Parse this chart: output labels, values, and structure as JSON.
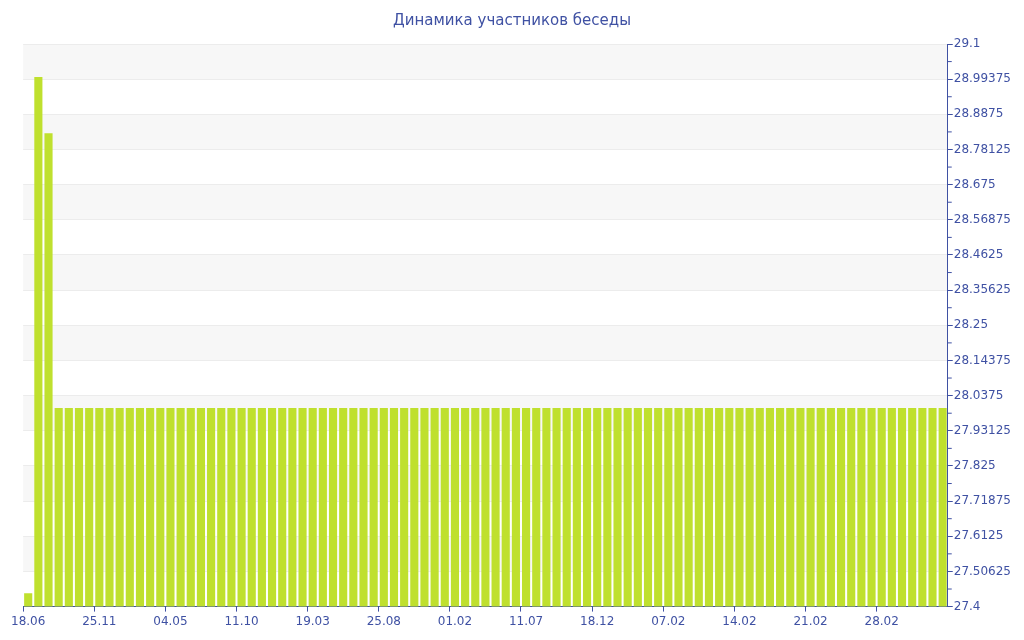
{
  "chart_data": {
    "type": "bar",
    "title": "Динамика участников беседы",
    "categories": [
      "18.06",
      null,
      null,
      null,
      null,
      null,
      null,
      "25.11",
      null,
      null,
      null,
      null,
      null,
      null,
      "04.05",
      null,
      null,
      null,
      null,
      null,
      null,
      "11.10",
      null,
      null,
      null,
      null,
      null,
      null,
      "19.03",
      null,
      null,
      null,
      null,
      null,
      null,
      "25.08",
      null,
      null,
      null,
      null,
      null,
      null,
      "01.02",
      null,
      null,
      null,
      null,
      null,
      null,
      "11.07",
      null,
      null,
      null,
      null,
      null,
      null,
      "18.12",
      null,
      null,
      null,
      null,
      null,
      null,
      "07.02",
      null,
      null,
      null,
      null,
      null,
      null,
      "14.02",
      null,
      null,
      null,
      null,
      null,
      null,
      "21.02",
      null,
      null,
      null,
      null,
      null,
      null,
      "28.02",
      null,
      null,
      null,
      null,
      null,
      null
    ],
    "values": [
      27.44,
      29.0,
      28.83,
      28,
      28,
      28,
      28,
      28,
      28,
      28,
      28,
      28,
      28,
      28,
      28,
      28,
      28,
      28,
      28,
      28,
      28,
      28,
      28,
      28,
      28,
      28,
      28,
      28,
      28,
      28,
      28,
      28,
      28,
      28,
      28,
      28,
      28,
      28,
      28,
      28,
      28,
      28,
      28,
      28,
      28,
      28,
      28,
      28,
      28,
      28,
      28,
      28,
      28,
      28,
      28,
      28,
      28,
      28,
      28,
      28,
      28,
      28,
      28,
      28,
      28,
      28,
      28,
      28,
      28,
      28,
      28,
      28,
      28,
      28,
      28,
      28,
      28,
      28,
      28,
      28,
      28,
      28,
      28,
      28,
      28,
      28,
      28,
      28,
      28,
      28,
      28
    ],
    "color": "#bfe02e",
    "ylim": [
      27.4,
      29.1
    ],
    "yticks": [
      27.4,
      27.50625,
      27.6125,
      27.71875,
      27.825,
      27.93125,
      28.0375,
      28.14375,
      28.25,
      28.35625,
      28.4625,
      28.56875,
      28.675,
      28.78125,
      28.8875,
      28.99375,
      29.1
    ],
    "grid": true,
    "legend": false
  }
}
